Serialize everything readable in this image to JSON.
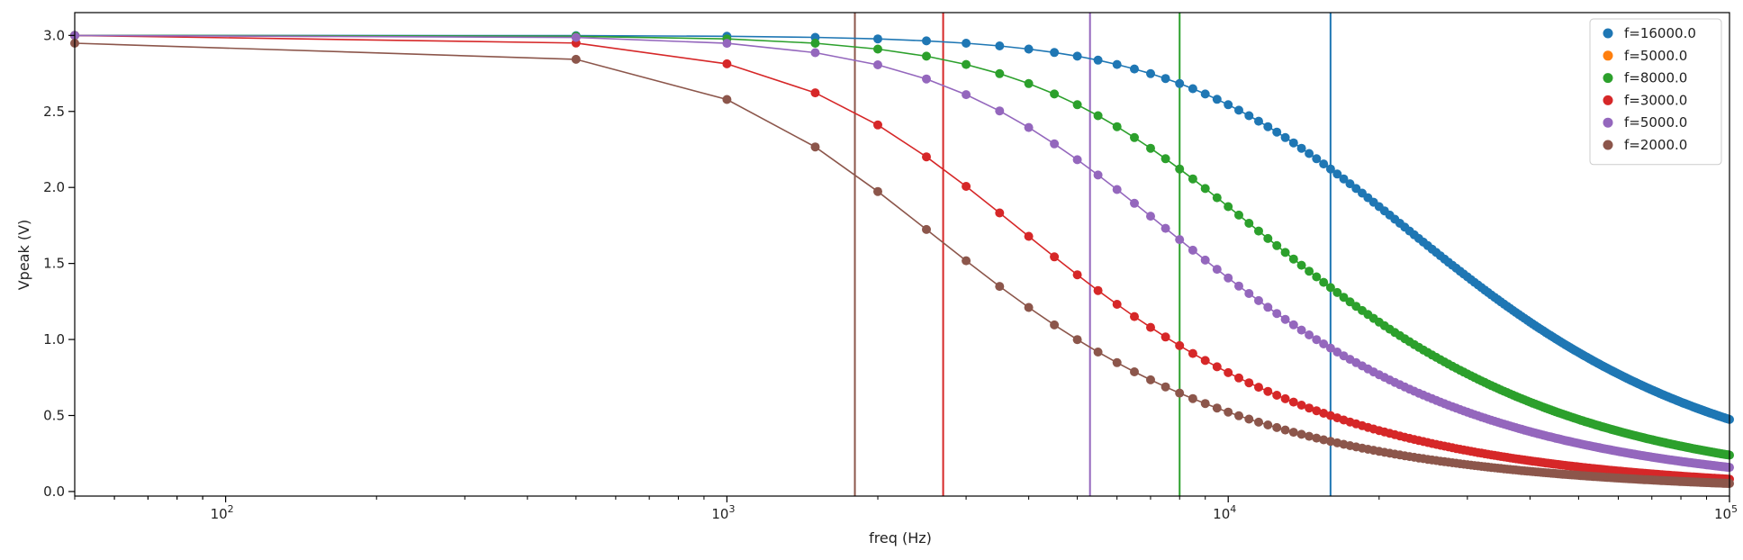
{
  "chart_data": {
    "type": "scatter",
    "title": "",
    "xlabel": "freq (Hz)",
    "ylabel": "Vpeak (V)",
    "xscale": "log",
    "xlim": [
      50,
      100000
    ],
    "ylim": [
      -0.03,
      3.15
    ],
    "x_ticks": [
      {
        "value": 100,
        "base": "10",
        "exp": "2"
      },
      {
        "value": 1000,
        "base": "10",
        "exp": "3"
      },
      {
        "value": 10000,
        "base": "10",
        "exp": "4"
      },
      {
        "value": 100000,
        "base": "10",
        "exp": "5"
      }
    ],
    "y_ticks": [
      "0.0",
      "0.5",
      "1.0",
      "1.5",
      "2.0",
      "2.5",
      "3.0"
    ],
    "grid": false,
    "legend_position": "top-right",
    "series": [
      {
        "name": "f=16000.0",
        "color": "#1f77b4",
        "cutoff": 16000,
        "amplitude": 3.0
      },
      {
        "name": "f=5000.0",
        "color": "#ff7f0e",
        "cutoff": 5000,
        "amplitude": 3.0,
        "hidden": true
      },
      {
        "name": "f=8000.0",
        "color": "#2ca02c",
        "cutoff": 8000,
        "amplitude": 3.0
      },
      {
        "name": "f=3000.0",
        "color": "#d62728",
        "cutoff": 2700,
        "amplitude": 3.0
      },
      {
        "name": "f=5000.0",
        "color": "#9467bd",
        "cutoff": 5300,
        "amplitude": 3.0
      },
      {
        "name": "f=2000.0",
        "color": "#8c564b",
        "cutoff": 1800,
        "amplitude": 2.95
      }
    ],
    "vertical_lines": [
      {
        "x": 1800,
        "color": "#8c564b"
      },
      {
        "x": 2700,
        "color": "#d62728"
      },
      {
        "x": 5300,
        "color": "#9467bd"
      },
      {
        "x": 8000,
        "color": "#2ca02c"
      },
      {
        "x": 16000,
        "color": "#1f77b4"
      }
    ],
    "sample_frequencies": {
      "first": 50,
      "second": 500,
      "step": 500,
      "last": 100000
    }
  }
}
